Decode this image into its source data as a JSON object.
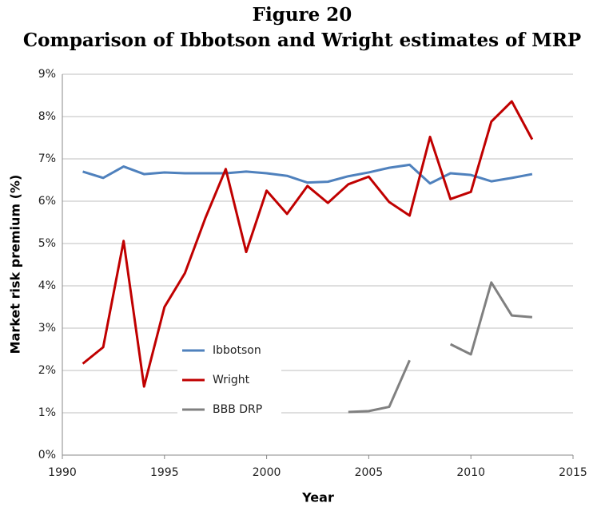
{
  "chart_data": {
    "type": "line",
    "title": "Figure 20",
    "subtitle": "Comparison of Ibbotson and Wright estimates of MRP",
    "xlabel": "Year",
    "ylabel": "Market risk premium (%)",
    "x": [
      1991,
      1992,
      1993,
      1994,
      1995,
      1996,
      1997,
      1998,
      1999,
      2000,
      2001,
      2002,
      2003,
      2004,
      2005,
      2006,
      2007,
      2008,
      2009,
      2010,
      2011,
      2012,
      2013
    ],
    "series": [
      {
        "name": "Ibbotson",
        "color": "#4f81bd",
        "values": [
          6.7,
          6.55,
          6.82,
          6.64,
          6.68,
          6.66,
          6.66,
          6.66,
          6.7,
          6.66,
          6.6,
          6.44,
          6.46,
          6.59,
          6.68,
          6.79,
          6.86,
          6.42,
          6.66,
          6.62,
          6.47,
          6.55,
          6.64
        ]
      },
      {
        "name": "Wright",
        "color": "#c00000",
        "values": [
          2.16,
          2.55,
          5.06,
          1.62,
          3.5,
          4.3,
          5.6,
          6.76,
          4.8,
          6.25,
          5.7,
          6.36,
          5.96,
          6.4,
          6.58,
          5.98,
          5.66,
          7.52,
          6.05,
          6.22,
          7.88,
          8.36,
          7.46
        ]
      },
      {
        "name": "BBB DRP",
        "color": "#808080",
        "values": [
          null,
          null,
          null,
          null,
          null,
          null,
          null,
          null,
          null,
          null,
          null,
          null,
          null,
          1.02,
          1.04,
          1.14,
          2.24,
          null,
          2.62,
          2.38,
          4.08,
          3.3,
          3.26
        ]
      }
    ],
    "xlim": [
      1990,
      2015
    ],
    "xticks": [
      1990,
      1995,
      2000,
      2005,
      2010,
      2015
    ],
    "ylim": [
      0,
      9
    ],
    "yticks": [
      {
        "value": 0,
        "label": "0%"
      },
      {
        "value": 1,
        "label": "1%"
      },
      {
        "value": 2,
        "label": "2%"
      },
      {
        "value": 3,
        "label": "3%"
      },
      {
        "value": 4,
        "label": "4%"
      },
      {
        "value": 5,
        "label": "5%"
      },
      {
        "value": 6,
        "label": "6%"
      },
      {
        "value": 7,
        "label": "7%"
      },
      {
        "value": 8,
        "label": "8%"
      },
      {
        "value": 9,
        "label": "9%"
      }
    ],
    "grid": true,
    "legend": "lower-left"
  }
}
